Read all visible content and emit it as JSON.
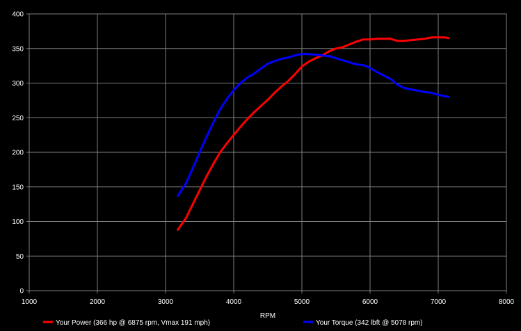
{
  "chart_data": {
    "type": "line",
    "title": "",
    "xlabel": "RPM",
    "ylabel": "",
    "xlim": [
      1000,
      8000
    ],
    "ylim": [
      0,
      400
    ],
    "x_ticks": [
      1000,
      2000,
      3000,
      4000,
      5000,
      6000,
      7000,
      8000
    ],
    "y_ticks": [
      0,
      50,
      100,
      150,
      200,
      250,
      300,
      350,
      400
    ],
    "grid": true,
    "legend_position": "bottom",
    "background_color": "#000000",
    "grid_color": "#808080",
    "series": [
      {
        "name": "Your Power (366 hp @ 6875 rpm, Vmax 191 mph)",
        "color": "#ff0000",
        "points": [
          [
            3180,
            88
          ],
          [
            3300,
            105
          ],
          [
            3400,
            125
          ],
          [
            3500,
            145
          ],
          [
            3600,
            165
          ],
          [
            3700,
            183
          ],
          [
            3800,
            200
          ],
          [
            3900,
            213
          ],
          [
            4000,
            225
          ],
          [
            4100,
            237
          ],
          [
            4200,
            248
          ],
          [
            4300,
            258
          ],
          [
            4400,
            267
          ],
          [
            4500,
            276
          ],
          [
            4600,
            286
          ],
          [
            4700,
            295
          ],
          [
            4800,
            303
          ],
          [
            4900,
            313
          ],
          [
            5000,
            324
          ],
          [
            5100,
            331
          ],
          [
            5200,
            336
          ],
          [
            5300,
            340
          ],
          [
            5400,
            346
          ],
          [
            5500,
            350
          ],
          [
            5600,
            352
          ],
          [
            5700,
            356
          ],
          [
            5800,
            360
          ],
          [
            5900,
            363
          ],
          [
            6000,
            363
          ],
          [
            6100,
            364
          ],
          [
            6200,
            364
          ],
          [
            6300,
            364
          ],
          [
            6400,
            361
          ],
          [
            6500,
            361
          ],
          [
            6600,
            362
          ],
          [
            6700,
            363
          ],
          [
            6800,
            364
          ],
          [
            6900,
            366
          ],
          [
            7000,
            366
          ],
          [
            7100,
            366
          ],
          [
            7150,
            365
          ]
        ]
      },
      {
        "name": "Your Torque (342 lbft @ 5078 rpm)",
        "color": "#0000ff",
        "points": [
          [
            3180,
            137
          ],
          [
            3300,
            155
          ],
          [
            3400,
            177
          ],
          [
            3500,
            200
          ],
          [
            3600,
            222
          ],
          [
            3700,
            243
          ],
          [
            3800,
            262
          ],
          [
            3900,
            277
          ],
          [
            4000,
            290
          ],
          [
            4100,
            300
          ],
          [
            4200,
            308
          ],
          [
            4300,
            314
          ],
          [
            4400,
            321
          ],
          [
            4500,
            328
          ],
          [
            4600,
            332
          ],
          [
            4700,
            335
          ],
          [
            4800,
            337
          ],
          [
            4900,
            340
          ],
          [
            5000,
            342
          ],
          [
            5100,
            342
          ],
          [
            5200,
            341
          ],
          [
            5300,
            340
          ],
          [
            5400,
            339
          ],
          [
            5500,
            336
          ],
          [
            5600,
            333
          ],
          [
            5700,
            330
          ],
          [
            5800,
            327
          ],
          [
            5900,
            326
          ],
          [
            6000,
            322
          ],
          [
            6100,
            316
          ],
          [
            6200,
            311
          ],
          [
            6300,
            306
          ],
          [
            6400,
            298
          ],
          [
            6500,
            293
          ],
          [
            6600,
            291
          ],
          [
            6700,
            289
          ],
          [
            6800,
            287
          ],
          [
            6900,
            286
          ],
          [
            7000,
            283
          ],
          [
            7100,
            281
          ],
          [
            7150,
            280
          ]
        ]
      }
    ]
  }
}
